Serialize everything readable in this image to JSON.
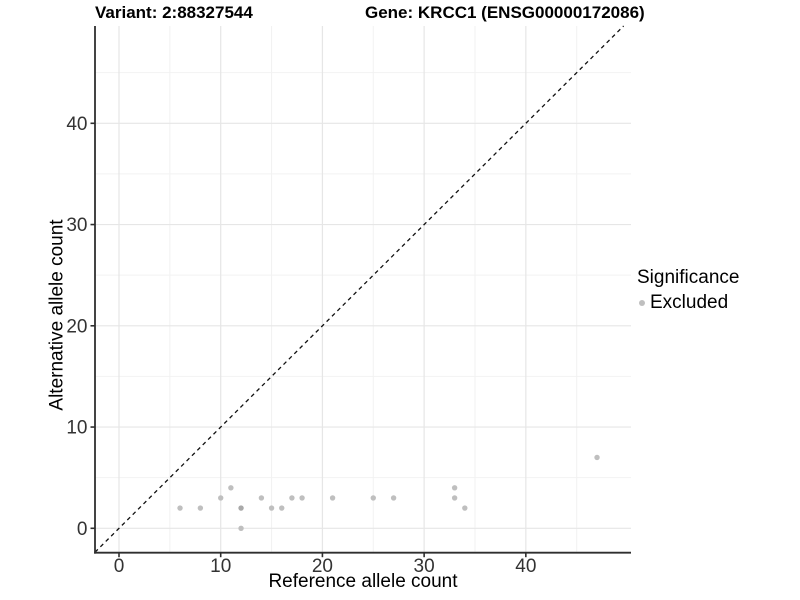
{
  "chart_data": {
    "type": "scatter",
    "titles": [
      "Variant: 2:88327544",
      "Gene: KRCC1 (ENSG00000172086)"
    ],
    "xlabel": "Reference allele count",
    "ylabel": "Alternative allele count",
    "x_ticks": [
      0,
      10,
      20,
      30,
      40
    ],
    "y_ticks": [
      0,
      10,
      20,
      30,
      40
    ],
    "x_minor": [
      5,
      15,
      25,
      35,
      45
    ],
    "y_minor": [
      5,
      15,
      25,
      35,
      45
    ],
    "xlim": [
      -2.36,
      50.34
    ],
    "ylim": [
      -2.41,
      49.61
    ],
    "grid": "major+minor",
    "identity_line": {
      "equation": "y = x",
      "style": "dashed",
      "color": "#000000"
    },
    "legend": {
      "title": "Significance",
      "position": "right",
      "items": [
        {
          "label": "Excluded",
          "color": "#bfbfbf"
        }
      ]
    },
    "series": [
      {
        "name": "Excluded",
        "color": "#bfbfbf",
        "overlap_color": "#a9a9a9",
        "points": [
          {
            "x": 6,
            "y": 2
          },
          {
            "x": 8,
            "y": 2
          },
          {
            "x": 10,
            "y": 3
          },
          {
            "x": 11,
            "y": 4
          },
          {
            "x": 12,
            "y": 0
          },
          {
            "x": 12,
            "y": 2,
            "n": 2
          },
          {
            "x": 14,
            "y": 3
          },
          {
            "x": 15,
            "y": 2
          },
          {
            "x": 16,
            "y": 2
          },
          {
            "x": 17,
            "y": 3
          },
          {
            "x": 18,
            "y": 3
          },
          {
            "x": 21,
            "y": 3
          },
          {
            "x": 25,
            "y": 3
          },
          {
            "x": 27,
            "y": 3
          },
          {
            "x": 33,
            "y": 3
          },
          {
            "x": 33,
            "y": 4
          },
          {
            "x": 34,
            "y": 2
          },
          {
            "x": 47,
            "y": 7
          }
        ]
      }
    ]
  },
  "colors": {
    "background": "#ffffff",
    "axis": "#2f2f2f",
    "tick_label": "#333333",
    "grid_major": "#e6e6e6",
    "grid_minor": "#f2f2f2",
    "point": "#bfbfbf",
    "point_overlap": "#a9a9a9",
    "identity_line": "#111111"
  }
}
